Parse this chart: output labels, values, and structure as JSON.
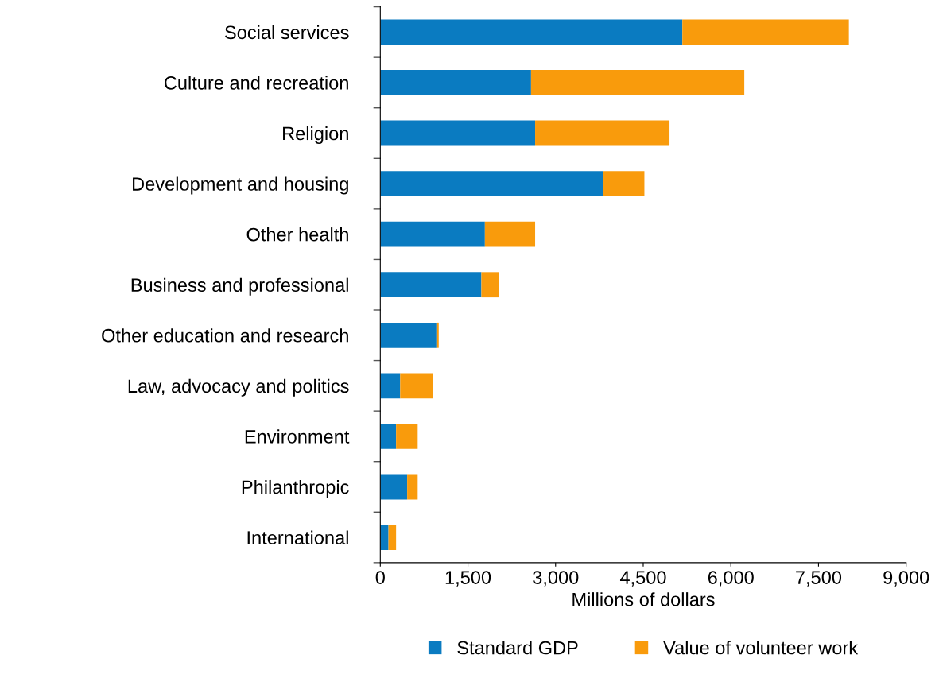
{
  "chart_data": {
    "type": "bar",
    "orientation": "horizontal",
    "stacked": true,
    "xlabel": "Millions of dollars",
    "categories": [
      "Social services",
      "Culture and recreation",
      "Religion",
      "Development and housing",
      "Other health",
      "Business and professional",
      "Other education and research",
      "Law, advocacy and politics",
      "Environment",
      "Philanthropic",
      "International"
    ],
    "series": [
      {
        "name": "Standard GDP",
        "color": "#0a7bc1",
        "values": [
          5170,
          2580,
          2650,
          3820,
          1790,
          1730,
          960,
          340,
          270,
          460,
          140
        ]
      },
      {
        "name": "Value of volunteer work",
        "color": "#f99b0c",
        "values": [
          2850,
          3650,
          2300,
          700,
          860,
          300,
          40,
          560,
          370,
          180,
          130
        ]
      }
    ],
    "xlim": [
      0,
      9000
    ],
    "xticks": [
      0,
      {
        "value": 1500,
        "label": "1,500"
      },
      {
        "value": 3000,
        "label": "3,000"
      },
      {
        "value": 4500,
        "label": "4,500"
      },
      {
        "value": 6000,
        "label": "6,000"
      },
      {
        "value": 7500,
        "label": "7,500"
      },
      {
        "value": 9000,
        "label": "9,000"
      }
    ],
    "grid": false,
    "legend": "bottom"
  }
}
